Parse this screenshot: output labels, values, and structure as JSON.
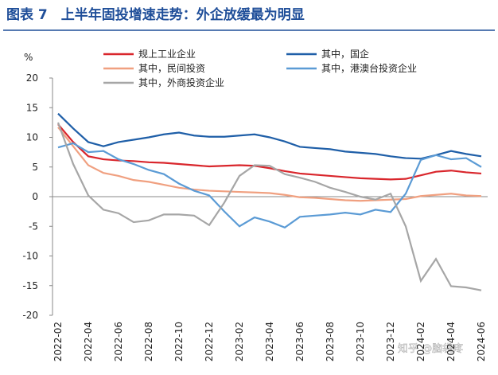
{
  "chart_data": {
    "type": "line",
    "title": "图表 7　上半年固投增速走势：外企放缓最为明显",
    "y_label": "%",
    "watermark": "知乎 @脑袋疼",
    "categories": [
      "2022-02",
      null,
      "2022-04",
      null,
      "2022-06",
      null,
      "2022-08",
      null,
      "2022-10",
      null,
      "2022-12",
      null,
      "2023-02",
      null,
      "2023-04",
      null,
      "2023-06",
      null,
      "2023-08",
      null,
      "2023-10",
      null,
      "2023-12",
      null,
      "2024-02",
      null,
      "2024-04",
      null,
      "2024-06"
    ],
    "series": [
      {
        "name": "规上工业企业",
        "color": "#d9262c",
        "values": [
          12.2,
          9.2,
          6.8,
          6.3,
          6.1,
          6.0,
          5.8,
          5.7,
          5.5,
          5.3,
          5.1,
          5.2,
          5.3,
          5.2,
          4.8,
          4.3,
          3.9,
          3.7,
          3.5,
          3.3,
          3.1,
          3.0,
          2.9,
          3.0,
          3.6,
          4.2,
          4.4,
          4.1,
          3.9
        ]
      },
      {
        "name": "其中，国企",
        "color": "#1f5fa8",
        "values": [
          14.0,
          11.5,
          9.2,
          8.5,
          9.2,
          9.6,
          10.0,
          10.5,
          10.8,
          10.3,
          10.1,
          10.1,
          10.3,
          10.5,
          10.0,
          9.3,
          8.4,
          8.2,
          8.0,
          7.6,
          7.4,
          7.2,
          6.8,
          6.5,
          6.4,
          7.0,
          7.7,
          7.2,
          6.8
        ]
      },
      {
        "name": "其中，民间投资",
        "color": "#f0a080",
        "values": [
          11.7,
          8.5,
          5.3,
          4.0,
          3.5,
          2.8,
          2.5,
          2.0,
          1.5,
          1.2,
          1.0,
          0.9,
          0.8,
          0.7,
          0.6,
          0.3,
          -0.1,
          -0.2,
          -0.4,
          -0.6,
          -0.7,
          -0.6,
          -0.5,
          -0.4,
          0.1,
          0.3,
          0.5,
          0.2,
          0.1
        ]
      },
      {
        "name": "其中，港澳台投资企业",
        "color": "#5b9bd5",
        "values": [
          8.3,
          9.0,
          7.5,
          7.7,
          6.3,
          5.5,
          4.5,
          3.8,
          2.2,
          1.0,
          0.2,
          -2.5,
          -5.0,
          -3.5,
          -4.2,
          -5.2,
          -3.4,
          -3.2,
          -3.0,
          -2.7,
          -3.0,
          -2.2,
          -2.6,
          0.5,
          6.2,
          7.0,
          6.3,
          6.5,
          5.0
        ]
      },
      {
        "name": "其中，外商投资企业",
        "color": "#a6a6a6",
        "values": [
          12.5,
          5.5,
          0.2,
          -2.2,
          -2.8,
          -4.3,
          -4.0,
          -3.0,
          -3.0,
          -3.2,
          -4.8,
          -1.0,
          3.5,
          5.3,
          5.2,
          3.8,
          3.2,
          2.5,
          1.5,
          0.8,
          0.0,
          -0.5,
          0.5,
          -5.0,
          -14.2,
          -10.5,
          -15.1,
          -15.3,
          -15.8
        ]
      }
    ],
    "ylim": [
      -20,
      20
    ],
    "yticks": [
      -20,
      -15,
      -10,
      -5,
      0,
      5,
      10,
      15,
      20
    ]
  }
}
